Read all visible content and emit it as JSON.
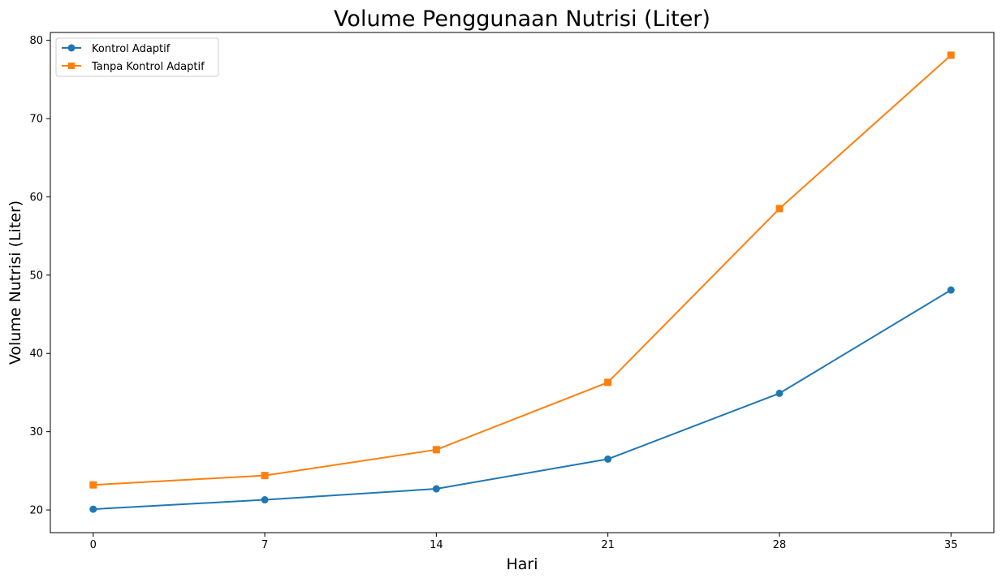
{
  "chart_data": {
    "type": "line",
    "title": "Volume Penggunaan Nutrisi (Liter)",
    "xlabel": "Hari",
    "ylabel": "Volume Nutrisi (Liter)",
    "x": [
      0,
      7,
      14,
      21,
      28,
      35
    ],
    "x_tick_labels": [
      "0",
      "7",
      "14",
      "21",
      "28",
      "35"
    ],
    "y_ticks": [
      20,
      30,
      40,
      50,
      60,
      70,
      80
    ],
    "y_tick_labels": [
      "20",
      "30",
      "40",
      "50",
      "60",
      "70",
      "80"
    ],
    "xlim": [
      -1.75,
      36.75
    ],
    "ylim": [
      17.1,
      81.0
    ],
    "grid": false,
    "legend_position": "upper left",
    "series": [
      {
        "name": "Kontrol Adaptif",
        "color": "#1f77b4",
        "marker": "circle",
        "values": [
          20.1,
          21.3,
          22.7,
          26.5,
          34.9,
          48.1
        ]
      },
      {
        "name": "Tanpa Kontrol Adaptif",
        "color": "#ff7f0e",
        "marker": "square",
        "values": [
          23.2,
          24.4,
          27.7,
          36.3,
          58.5,
          78.1
        ]
      }
    ]
  }
}
